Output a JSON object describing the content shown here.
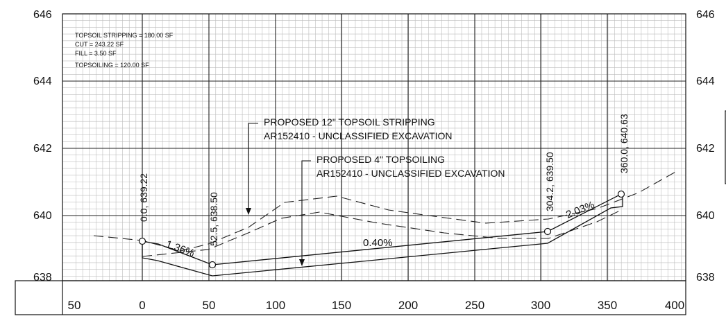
{
  "elevation_labels": [
    "646",
    "644",
    "642",
    "640",
    "638"
  ],
  "station_labels": [
    "50",
    "0",
    "50",
    "100",
    "150",
    "200",
    "250",
    "300",
    "350",
    "400"
  ],
  "quantities": {
    "topsoil_stripping": "TOPSOIL STRIPPING = 180.00 SF",
    "cut": "CUT = 243.22 SF",
    "fill": "FILL = 3.50 SF",
    "topsoiling": "TOPSOILING = 120.00 SF"
  },
  "callouts": {
    "stripping_line1": "PROPOSED 12\" TOPSOIL STRIPPING",
    "stripping_line2": "AR152410 - UNCLASSIFIED EXCAVATION",
    "topsoiling_line1": "PROPOSED 4\" TOPSOILING",
    "topsoiling_line2": "AR152410 - UNCLASSIFIED EXCAVATION"
  },
  "slopes": {
    "left": "1.36%",
    "middle": "0.40%",
    "right": "2.03%"
  },
  "points": [
    {
      "label": "0.0, 639.22",
      "station": 0.0,
      "elevation": 639.22
    },
    {
      "label": "52.5, 638.50",
      "station": 52.5,
      "elevation": 638.5
    },
    {
      "label": "304.2, 639.50",
      "station": 304.2,
      "elevation": 639.5
    },
    {
      "label": "360.0, 640.63",
      "station": 360.0,
      "elevation": 640.63
    }
  ]
}
